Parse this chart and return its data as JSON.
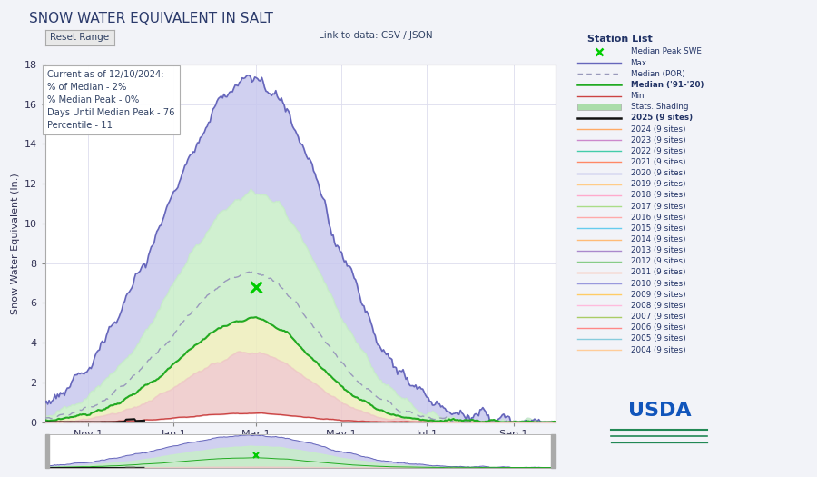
{
  "title": "SNOW WATER EQUIVALENT IN SALT",
  "ylabel": "Snow Water Equivalent (In.)",
  "ylim": [
    0,
    18
  ],
  "yticks": [
    0,
    2,
    4,
    6,
    8,
    10,
    12,
    14,
    16,
    18
  ],
  "xtick_labels": [
    "Nov 1",
    "Jan 1",
    "Mar 1",
    "May 1",
    "Jul 1",
    "Sep 1"
  ],
  "info_box_text": "Current as of 12/10/2024:\n% of Median - 2%\n% Median Peak - 0%\nDays Until Median Peak - 76\nPercentile - 11",
  "link_text": "Link to data: CSV / JSON",
  "reset_text": "Reset Range",
  "station_list_title": "Station List",
  "fig_bg": "#f0f2f8",
  "plot_bg": "#ffffff",
  "title_color": "#2b3a6b",
  "max_line_color": "#6666bb",
  "max_fill_color": "#c8c8ee",
  "median_por_color": "#9999bb",
  "median_9120_color": "#22aa22",
  "upper_fill_color": "#c8eec8",
  "yellow_fill_color": "#eeeebb",
  "pink_fill_color": "#eec8c8",
  "min_line_color": "#cc4444",
  "current_color": "#111111",
  "marker_color": "#00cc00",
  "legend_entries": [
    {
      "label": "Median Peak SWE",
      "color": "#00cc00",
      "style": "marker_x"
    },
    {
      "label": "Max",
      "color": "#6666bb",
      "style": "line"
    },
    {
      "label": "Median (POR)",
      "color": "#9999bb",
      "style": "dashed"
    },
    {
      "label": "Median ('91-'20)",
      "color": "#22aa22",
      "style": "line_bold"
    },
    {
      "label": "Min",
      "color": "#cc4444",
      "style": "line"
    },
    {
      "label": "Stats. Shading",
      "color": "#aaddaa",
      "style": "fill"
    },
    {
      "label": "2025 (9 sites)",
      "color": "#111111",
      "style": "line_bold"
    },
    {
      "label": "2024 (9 sites)",
      "color": "#ffaa66",
      "style": "line"
    },
    {
      "label": "2023 (9 sites)",
      "color": "#cc88cc",
      "style": "line"
    },
    {
      "label": "2022 (9 sites)",
      "color": "#44ccaa",
      "style": "line"
    },
    {
      "label": "2021 (9 sites)",
      "color": "#ff8866",
      "style": "line"
    },
    {
      "label": "2020 (9 sites)",
      "color": "#8888dd",
      "style": "line"
    },
    {
      "label": "2019 (9 sites)",
      "color": "#ffcc88",
      "style": "line"
    },
    {
      "label": "2018 (9 sites)",
      "color": "#ffaacc",
      "style": "line"
    },
    {
      "label": "2017 (9 sites)",
      "color": "#aadd88",
      "style": "line"
    },
    {
      "label": "2016 (9 sites)",
      "color": "#ffaaaa",
      "style": "line"
    },
    {
      "label": "2015 (9 sites)",
      "color": "#66ccee",
      "style": "line"
    },
    {
      "label": "2014 (9 sites)",
      "color": "#ffbb77",
      "style": "line"
    },
    {
      "label": "2013 (9 sites)",
      "color": "#aa88cc",
      "style": "line"
    },
    {
      "label": "2012 (9 sites)",
      "color": "#88cc88",
      "style": "line"
    },
    {
      "label": "2011 (9 sites)",
      "color": "#ff9977",
      "style": "line"
    },
    {
      "label": "2010 (9 sites)",
      "color": "#9999dd",
      "style": "line"
    },
    {
      "label": "2009 (9 sites)",
      "color": "#ffcc66",
      "style": "line"
    },
    {
      "label": "2008 (9 sites)",
      "color": "#ffbbdd",
      "style": "line"
    },
    {
      "label": "2007 (9 sites)",
      "color": "#aacc66",
      "style": "line"
    },
    {
      "label": "2006 (9 sites)",
      "color": "#ff8888",
      "style": "line"
    },
    {
      "label": "2005 (9 sites)",
      "color": "#88ccdd",
      "style": "line"
    },
    {
      "label": "2004 (9 sites)",
      "color": "#ffcc99",
      "style": "line"
    }
  ]
}
